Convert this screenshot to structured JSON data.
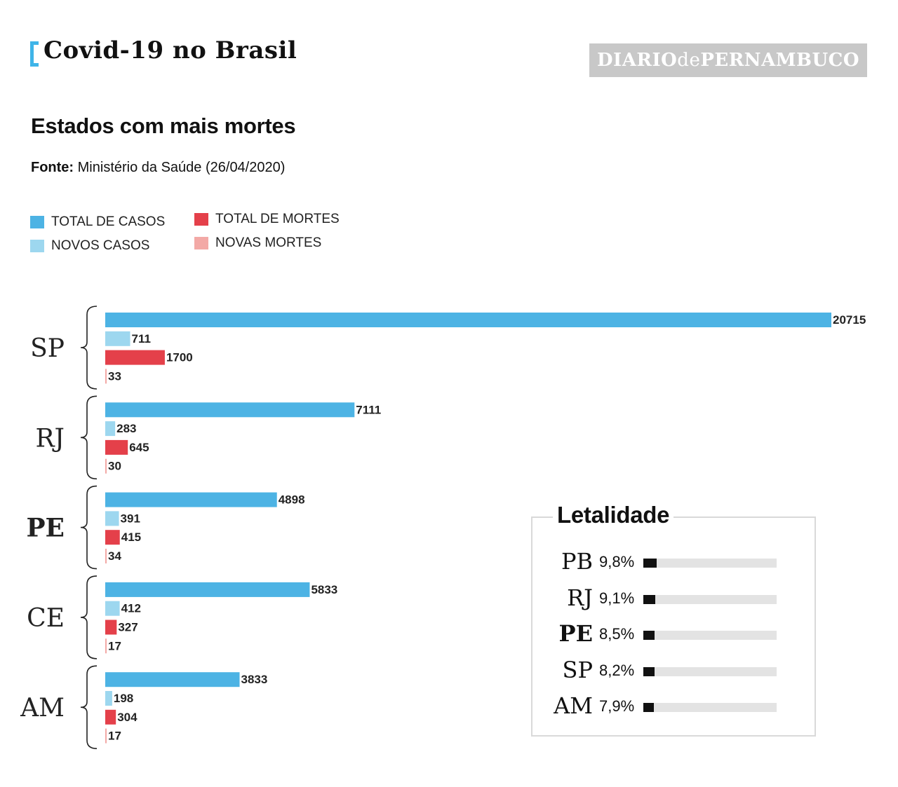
{
  "header": {
    "title": "Covid-19 no Brasil",
    "logo_part1": "DIARIO",
    "logo_part2": "de",
    "logo_part3": "PERNAMBUCO"
  },
  "subtitle": "Estados com mais mortes",
  "source": {
    "label": "Fonte:",
    "text": " Ministério da Saúde (26/04/2020)"
  },
  "legend": [
    {
      "label": "TOTAL DE CASOS",
      "color": "#4db3e4"
    },
    {
      "label": "NOVOS CASOS",
      "color": "#9dd7ef"
    },
    {
      "label": "TOTAL DE MORTES",
      "color": "#e4404a"
    },
    {
      "label": "NOVAS MORTES",
      "color": "#f3a9a6"
    }
  ],
  "chart_data": [
    {
      "type": "bar",
      "orientation": "horizontal",
      "title": "Estados com mais mortes",
      "categories": [
        "SP",
        "RJ",
        "PE",
        "CE",
        "AM"
      ],
      "highlight": "PE",
      "series": [
        {
          "name": "TOTAL DE CASOS",
          "color": "#4db3e4",
          "values": [
            20715,
            7111,
            4898,
            5833,
            3833
          ]
        },
        {
          "name": "NOVOS CASOS",
          "color": "#9dd7ef",
          "values": [
            711,
            283,
            391,
            412,
            198
          ]
        },
        {
          "name": "TOTAL DE MORTES",
          "color": "#e4404a",
          "values": [
            1700,
            645,
            415,
            327,
            304
          ]
        },
        {
          "name": "NOVAS MORTES",
          "color": "#f3a9a6",
          "values": [
            33,
            30,
            34,
            17,
            17
          ]
        }
      ],
      "xlim": [
        0,
        20715
      ],
      "data_labels": true
    },
    {
      "type": "bar",
      "orientation": "horizontal",
      "title": "Letalidade",
      "categories": [
        "PB",
        "RJ",
        "PE",
        "SP",
        "AM"
      ],
      "highlight": "PE",
      "labels": [
        "9,8%",
        "9,1%",
        "8,5%",
        "8,2%",
        "7,9%"
      ],
      "values": [
        9.8,
        9.1,
        8.5,
        8.2,
        7.9
      ],
      "unit": "%",
      "xlim": [
        0,
        100
      ]
    }
  ],
  "letalidade": {
    "title": "Letalidade",
    "rows": [
      {
        "state": "PB",
        "pct": "9,8%",
        "value": 9.8
      },
      {
        "state": "RJ",
        "pct": "9,1%",
        "value": 9.1
      },
      {
        "state": "PE",
        "pct": "8,5%",
        "value": 8.5
      },
      {
        "state": "SP",
        "pct": "8,2%",
        "value": 8.2
      },
      {
        "state": "AM",
        "pct": "7,9%",
        "value": 7.9
      }
    ]
  }
}
